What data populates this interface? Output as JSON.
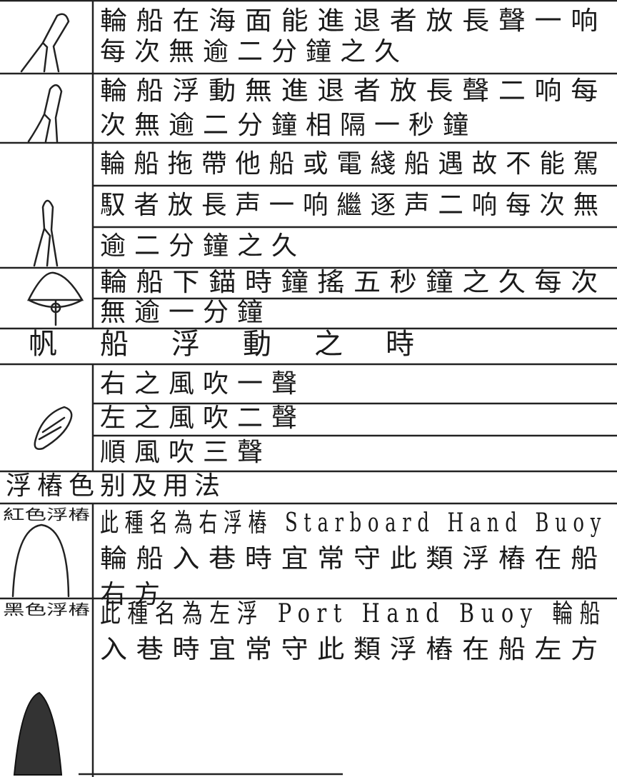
{
  "blocks": [
    {
      "lines": [
        "輪船在海面能進退者放長聲一响",
        "每次無逾二分鐘之久"
      ]
    },
    {
      "lines": [
        "輪船浮動無進退者放長聲二响每",
        "次無逾二分鐘相隔一秒鐘"
      ]
    },
    {
      "lines": [
        "輪船拖帶他船或電綫船遇故不能駕",
        "馭者放長声一响繼逐声二响每次無",
        "逾二分鐘之久"
      ]
    },
    {
      "lines": [
        "輪船下錨時鐘搖五秒鐘之久每次",
        "無逾一分鐘"
      ]
    },
    {
      "heading": "帆船浮動之時"
    },
    {
      "lines": [
        "右之風吹一聲",
        "左之風吹二聲",
        "順風吹三聲"
      ]
    },
    {
      "heading": "浮樁色别及用法"
    },
    {
      "label": "紅色浮樁",
      "lines": [
        "此種名為右浮樁 Starboard Hand Buoy",
        "輪船入巷時宜常守此類浮樁在船",
        "右方"
      ]
    },
    {
      "label": "黑色浮樁",
      "lines": [
        "此種名為左浮 Port Hand Buoy 輪船",
        "入巷時宜常守此類浮樁在船左方"
      ]
    }
  ]
}
